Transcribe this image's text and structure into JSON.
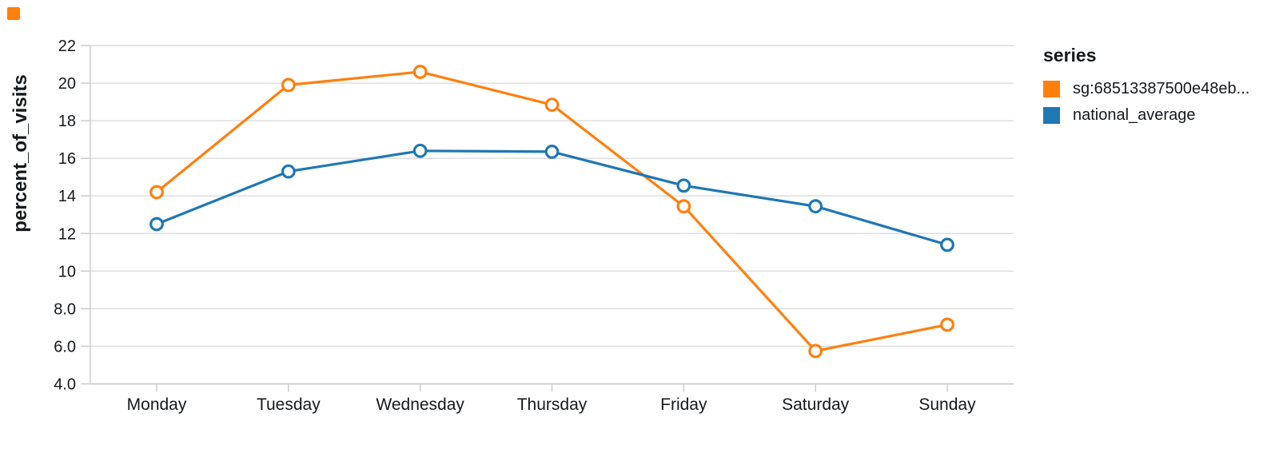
{
  "chart_data": {
    "type": "line",
    "title": "",
    "categories": [
      "Monday",
      "Tuesday",
      "Wednesday",
      "Thursday",
      "Friday",
      "Saturday",
      "Sunday"
    ],
    "series": [
      {
        "name": "sg:68513387500e48eb...",
        "color": "#ff7f0e",
        "values": [
          14.2,
          19.9,
          20.6,
          18.85,
          13.45,
          5.75,
          7.15
        ]
      },
      {
        "name": "national_average",
        "color": "#1f77b4",
        "values": [
          12.5,
          15.3,
          16.4,
          16.35,
          14.55,
          13.45,
          11.4
        ]
      }
    ],
    "xlabel": "",
    "ylabel": "percent_of_visits",
    "ylim": [
      4,
      22
    ],
    "y_ticks": [
      4,
      6,
      8,
      10,
      12,
      14,
      16,
      18,
      20,
      22
    ],
    "y_tick_labels": [
      "4.0",
      "6.0",
      "8.0",
      "10",
      "12",
      "14",
      "16",
      "18",
      "20",
      "22"
    ],
    "grid": true,
    "marker": "open-circle",
    "legend": {
      "title": "series",
      "position": "right"
    }
  },
  "artifacts": {
    "top_left_marker_color": "#ff7f0e"
  },
  "colors": {
    "grid": "#dcdcdc",
    "axis": "#c9c9c9",
    "tick_text": "#15181c"
  }
}
